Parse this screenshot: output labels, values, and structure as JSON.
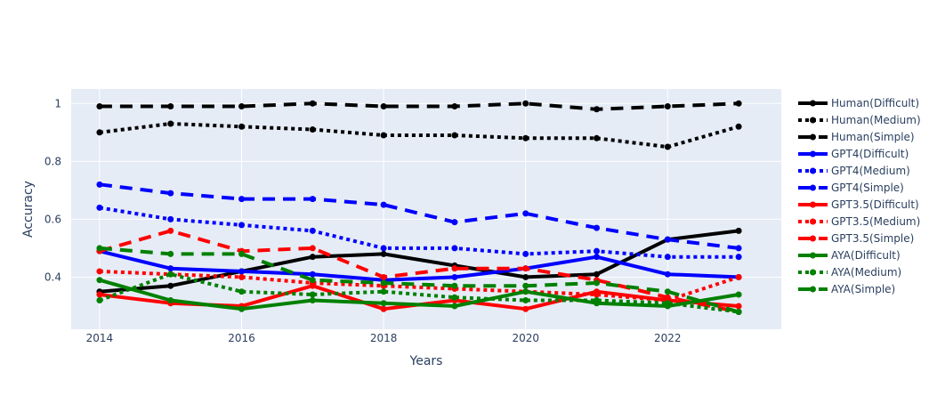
{
  "chart_data": {
    "type": "line",
    "title": "",
    "xlabel": "Years",
    "ylabel": "Accuracy",
    "xlim": [
      2013.6,
      2023.6
    ],
    "ylim": [
      0.22,
      1.05
    ],
    "x_ticks": [
      2014,
      2016,
      2018,
      2020,
      2022
    ],
    "y_ticks": [
      0.4,
      0.6,
      0.8,
      1
    ],
    "x_tick_labels": [
      "2014",
      "2016",
      "2018",
      "2020",
      "2022"
    ],
    "y_tick_labels": [
      "0.4",
      "0.6",
      "0.8",
      "1"
    ],
    "grid": true,
    "legend_position": "right",
    "plot_background": "#e5ecf6",
    "x": [
      2014,
      2015,
      2016,
      2017,
      2018,
      2019,
      2020,
      2021,
      2022,
      2023
    ],
    "series": [
      {
        "name": "Human(Difficult)",
        "color": "#000000",
        "dash": "solid",
        "values": [
          0.35,
          0.37,
          0.42,
          0.47,
          0.48,
          0.44,
          0.4,
          0.41,
          0.53,
          0.56
        ]
      },
      {
        "name": "Human(Medium)",
        "color": "#000000",
        "dash": "dot",
        "values": [
          0.9,
          0.93,
          0.92,
          0.91,
          0.89,
          0.89,
          0.88,
          0.88,
          0.85,
          0.92
        ]
      },
      {
        "name": "Human(Simple)",
        "color": "#000000",
        "dash": "dash",
        "values": [
          0.99,
          0.99,
          0.99,
          1.0,
          0.99,
          0.99,
          1.0,
          0.98,
          0.99,
          1.0
        ]
      },
      {
        "name": "GPT4(Difficult)",
        "color": "#0000ff",
        "dash": "solid",
        "values": [
          0.49,
          0.43,
          0.42,
          0.41,
          0.39,
          0.4,
          0.43,
          0.47,
          0.41,
          0.4
        ]
      },
      {
        "name": "GPT4(Medium)",
        "color": "#0000ff",
        "dash": "dot",
        "values": [
          0.64,
          0.6,
          0.58,
          0.56,
          0.5,
          0.5,
          0.48,
          0.49,
          0.47,
          0.47
        ]
      },
      {
        "name": "GPT4(Simple)",
        "color": "#0000ff",
        "dash": "dash",
        "values": [
          0.72,
          0.69,
          0.67,
          0.67,
          0.65,
          0.59,
          0.62,
          0.57,
          0.53,
          0.5
        ]
      },
      {
        "name": "GPT3.5(Difficult)",
        "color": "#ff0000",
        "dash": "solid",
        "values": [
          0.34,
          0.31,
          0.3,
          0.37,
          0.29,
          0.32,
          0.29,
          0.35,
          0.32,
          0.3
        ]
      },
      {
        "name": "GPT3.5(Medium)",
        "color": "#ff0000",
        "dash": "dot",
        "values": [
          0.42,
          0.41,
          0.4,
          0.38,
          0.37,
          0.36,
          0.35,
          0.34,
          0.32,
          0.4
        ]
      },
      {
        "name": "GPT3.5(Simple)",
        "color": "#ff0000",
        "dash": "dash",
        "values": [
          0.49,
          0.56,
          0.49,
          0.5,
          0.4,
          0.43,
          0.43,
          0.39,
          0.33,
          0.28
        ]
      },
      {
        "name": "AYA(Difficult)",
        "color": "#008000",
        "dash": "solid",
        "values": [
          0.39,
          0.32,
          0.29,
          0.32,
          0.31,
          0.3,
          0.35,
          0.31,
          0.3,
          0.34
        ]
      },
      {
        "name": "AYA(Medium)",
        "color": "#008000",
        "dash": "dot",
        "values": [
          0.32,
          0.41,
          0.35,
          0.34,
          0.35,
          0.33,
          0.32,
          0.32,
          0.31,
          0.28
        ]
      },
      {
        "name": "AYA(Simple)",
        "color": "#008000",
        "dash": "dash",
        "values": [
          0.5,
          0.48,
          0.48,
          0.39,
          0.38,
          0.37,
          0.37,
          0.38,
          0.35,
          0.28
        ]
      }
    ]
  }
}
